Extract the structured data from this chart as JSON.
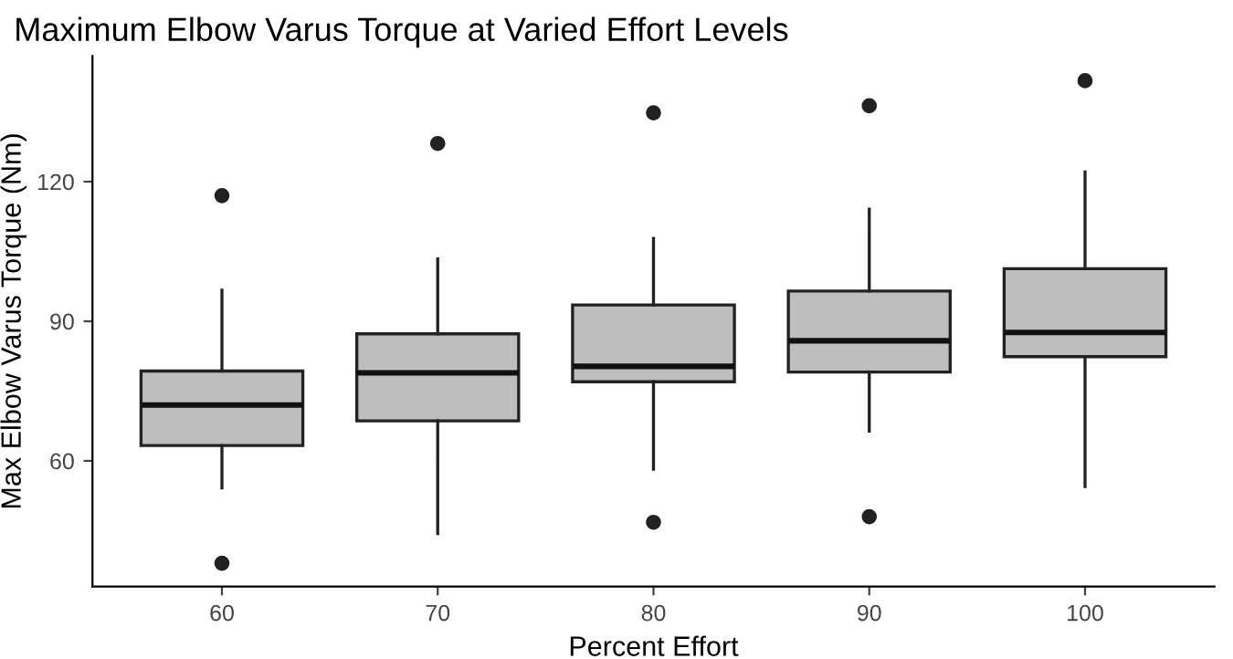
{
  "chart_data": {
    "type": "box",
    "title": "Maximum Elbow Varus Torque at Varied Effort Levels",
    "xlabel": "Percent Effort",
    "ylabel": "Max Elbow Varus Torque (Nm)",
    "categories": [
      "60",
      "70",
      "80",
      "90",
      "100"
    ],
    "series": [
      {
        "color": "#bebebe",
        "boxes": [
          {
            "low": 54.2,
            "q1": 63.3,
            "median": 72,
            "q3": 79.3,
            "high": 96.7,
            "outliers": [
              117,
              38
            ]
          },
          {
            "low": 44.4,
            "q1": 68.6,
            "median": 78.9,
            "q3": 87.3,
            "high": 103.4,
            "outliers": [
              128.2
            ]
          },
          {
            "low": 58.2,
            "q1": 77,
            "median": 80.3,
            "q3": 93.5,
            "high": 107.8,
            "outliers": [
              134.8,
              46.8
            ]
          },
          {
            "low": 66.4,
            "q1": 79.1,
            "median": 85.8,
            "q3": 96.5,
            "high": 114.1,
            "outliers": [
              136.3,
              48
            ]
          },
          {
            "low": 54.5,
            "q1": 82.4,
            "median": 87.6,
            "q3": 101.3,
            "high": 122.1,
            "outliers": [
              141.7
            ]
          }
        ]
      }
    ],
    "ylim": [
      33,
      147
    ],
    "yticks": [
      60,
      90,
      120
    ],
    "grid": false,
    "legend": false
  }
}
